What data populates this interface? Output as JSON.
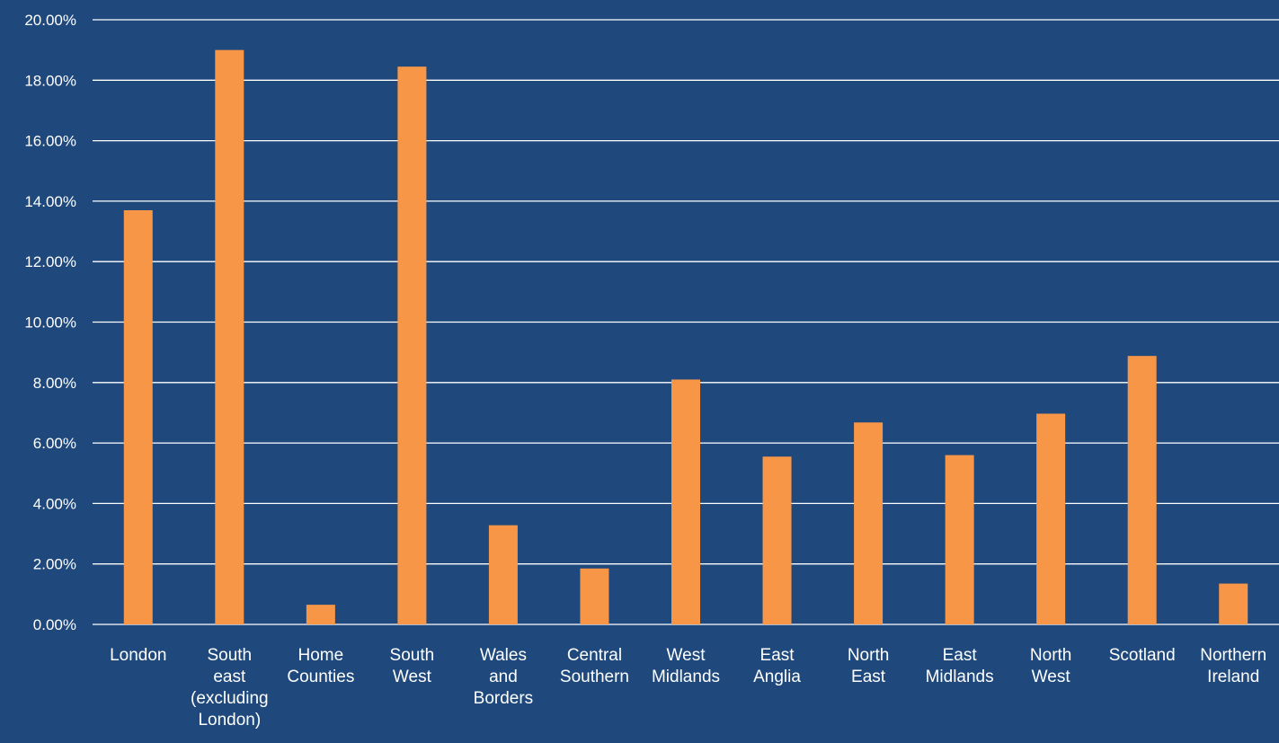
{
  "colors": {
    "background": "#1f497d",
    "bar": "#f79646",
    "gridline": "#ffffff",
    "text": "#ffffff"
  },
  "chart_data": {
    "type": "bar",
    "title": "",
    "xlabel": "",
    "ylabel": "",
    "ylim": [
      0,
      0.2
    ],
    "grid": true,
    "legend": "none",
    "y_ticks": [
      "0.00%",
      "2.00%",
      "4.00%",
      "6.00%",
      "8.00%",
      "10.00%",
      "12.00%",
      "14.00%",
      "16.00%",
      "18.00%",
      "20.00%"
    ],
    "categories": [
      [
        "London"
      ],
      [
        "South",
        "east",
        "(excluding",
        "London)"
      ],
      [
        "Home",
        "Counties"
      ],
      [
        "South",
        "West"
      ],
      [
        "Wales",
        "and",
        "Borders"
      ],
      [
        "Central",
        "Southern"
      ],
      [
        "West",
        "Midlands"
      ],
      [
        "East",
        "Anglia"
      ],
      [
        "North",
        "East"
      ],
      [
        "East",
        "Midlands"
      ],
      [
        "North",
        "West"
      ],
      [
        "Scotland"
      ],
      [
        "Northern",
        "Ireland"
      ]
    ],
    "values": [
      0.137,
      0.19,
      0.0065,
      0.1845,
      0.0328,
      0.0185,
      0.081,
      0.0555,
      0.0668,
      0.056,
      0.0697,
      0.0888,
      0.0135
    ]
  }
}
